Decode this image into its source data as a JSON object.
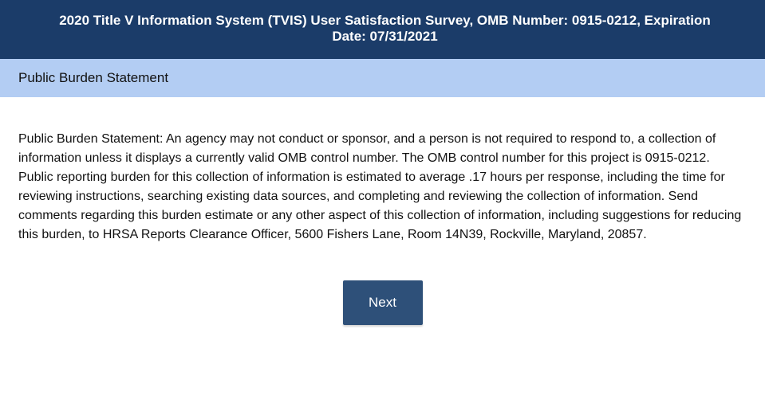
{
  "header": {
    "title_line1": "2020 Title V Information System (TVIS) User Satisfaction Survey, OMB Number: 0915-0212, Expiration",
    "title_line2": "Date: 07/31/2021"
  },
  "section": {
    "title": "Public Burden Statement"
  },
  "statement": {
    "lines": [
      "Public Burden Statement:  An agency may not conduct or sponsor, and a person is not required to respond to, a collection of",
      "information unless it displays a currently valid OMB control number.  The OMB control number for this project is 0915-0212.",
      "Public reporting burden for this collection of information is estimated to average .17 hours per response, including the time for",
      "reviewing instructions, searching existing data sources, and completing and reviewing the collection of information. Send",
      "comments regarding this burden estimate or any other aspect of this collection of information, including suggestions for reducing",
      "this burden, to HRSA Reports Clearance Officer, 5600 Fishers Lane, Room 14N39, Rockville, Maryland, 20857."
    ]
  },
  "actions": {
    "next_label": "Next"
  },
  "colors": {
    "header_bg": "#1b3c69",
    "band_bg": "#b3cdf3",
    "button_bg": "#2e5079"
  }
}
